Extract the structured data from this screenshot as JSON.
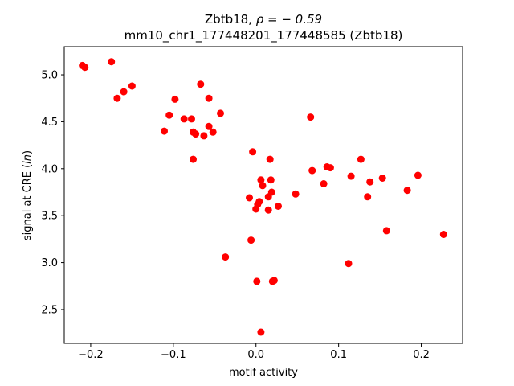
{
  "chart_data": {
    "type": "scatter",
    "title_line1_prefix": "Zbtb18, ",
    "title_line1_math": "ρ = − 0.59",
    "title_line2": "mm10_chr1_177448201_177448585 (Zbtb18)",
    "xlabel": "motif activity",
    "ylabel_prefix": "signal at CRE (",
    "ylabel_math": "ln",
    "ylabel_suffix": ")",
    "xlim": [
      -0.232,
      0.25
    ],
    "ylim": [
      2.14,
      5.3
    ],
    "xticks": [
      -0.2,
      -0.1,
      0.0,
      0.1,
      0.2
    ],
    "xtick_labels": [
      "−0.2",
      "−0.1",
      "0.0",
      "0.1",
      "0.2"
    ],
    "yticks": [
      2.5,
      3.0,
      3.5,
      4.0,
      4.5,
      5.0
    ],
    "ytick_labels": [
      "2.5",
      "3.0",
      "3.5",
      "4.0",
      "4.5",
      "5.0"
    ],
    "grid": false,
    "marker_color": "#ff0000",
    "points": [
      {
        "x": -0.21,
        "y": 5.1
      },
      {
        "x": -0.207,
        "y": 5.08
      },
      {
        "x": -0.175,
        "y": 5.14
      },
      {
        "x": -0.168,
        "y": 4.75
      },
      {
        "x": -0.16,
        "y": 4.82
      },
      {
        "x": -0.15,
        "y": 4.88
      },
      {
        "x": -0.111,
        "y": 4.4
      },
      {
        "x": -0.105,
        "y": 4.57
      },
      {
        "x": -0.098,
        "y": 4.74
      },
      {
        "x": -0.087,
        "y": 4.53
      },
      {
        "x": -0.078,
        "y": 4.53
      },
      {
        "x": -0.076,
        "y": 4.39
      },
      {
        "x": -0.076,
        "y": 4.1
      },
      {
        "x": -0.073,
        "y": 4.37
      },
      {
        "x": -0.067,
        "y": 4.9
      },
      {
        "x": -0.063,
        "y": 4.35
      },
      {
        "x": -0.057,
        "y": 4.75
      },
      {
        "x": -0.057,
        "y": 4.45
      },
      {
        "x": -0.052,
        "y": 4.39
      },
      {
        "x": -0.043,
        "y": 4.59
      },
      {
        "x": -0.037,
        "y": 3.06
      },
      {
        "x": -0.008,
        "y": 3.69
      },
      {
        "x": -0.006,
        "y": 3.24
      },
      {
        "x": -0.004,
        "y": 4.18
      },
      {
        "x": 0.0,
        "y": 3.57
      },
      {
        "x": 0.001,
        "y": 2.8
      },
      {
        "x": 0.002,
        "y": 3.62
      },
      {
        "x": 0.004,
        "y": 3.65
      },
      {
        "x": 0.006,
        "y": 3.88
      },
      {
        "x": 0.006,
        "y": 2.26
      },
      {
        "x": 0.008,
        "y": 3.82
      },
      {
        "x": 0.015,
        "y": 3.7
      },
      {
        "x": 0.015,
        "y": 3.56
      },
      {
        "x": 0.017,
        "y": 4.1
      },
      {
        "x": 0.018,
        "y": 3.88
      },
      {
        "x": 0.019,
        "y": 3.75
      },
      {
        "x": 0.02,
        "y": 2.8
      },
      {
        "x": 0.022,
        "y": 2.81
      },
      {
        "x": 0.027,
        "y": 3.6
      },
      {
        "x": 0.048,
        "y": 3.73
      },
      {
        "x": 0.066,
        "y": 4.55
      },
      {
        "x": 0.068,
        "y": 3.98
      },
      {
        "x": 0.082,
        "y": 3.84
      },
      {
        "x": 0.086,
        "y": 4.02
      },
      {
        "x": 0.09,
        "y": 4.01
      },
      {
        "x": 0.112,
        "y": 2.99
      },
      {
        "x": 0.115,
        "y": 3.92
      },
      {
        "x": 0.127,
        "y": 4.1
      },
      {
        "x": 0.135,
        "y": 3.7
      },
      {
        "x": 0.138,
        "y": 3.86
      },
      {
        "x": 0.153,
        "y": 3.9
      },
      {
        "x": 0.158,
        "y": 3.34
      },
      {
        "x": 0.183,
        "y": 3.77
      },
      {
        "x": 0.196,
        "y": 3.93
      },
      {
        "x": 0.227,
        "y": 3.3
      }
    ]
  }
}
